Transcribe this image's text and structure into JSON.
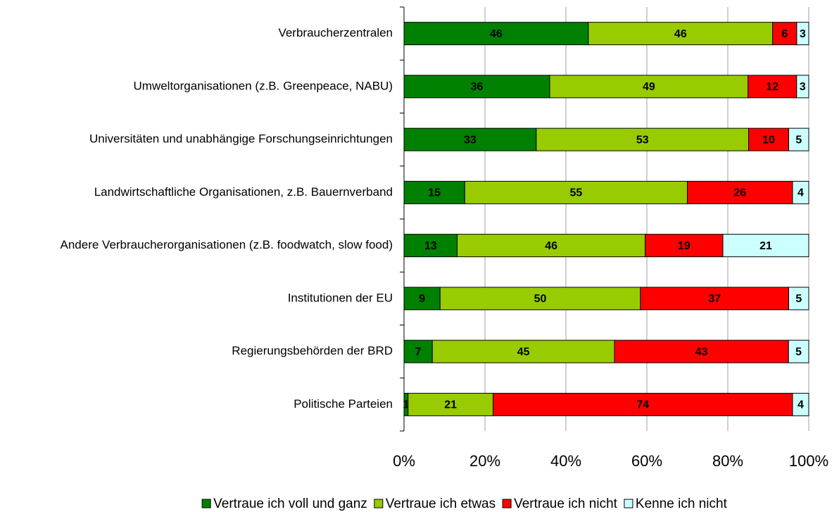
{
  "chart_data": {
    "type": "bar",
    "orientation": "horizontal",
    "stacked": "percent",
    "categories": [
      "Verbraucherzentralen",
      "Umweltorganisationen (z.B. Greenpeace, NABU)",
      "Universitäten und unabhängige Forschungseinrichtungen",
      "Landwirtschaftliche Organisationen, z.B. Bauernverband",
      "Andere Verbraucherorganisationen (z.B. foodwatch, slow food)",
      "Institutionen der EU",
      "Regierungsbehörden der BRD",
      "Politische Parteien"
    ],
    "series": [
      {
        "name": "Vertraue ich voll und ganz",
        "color": "#008000",
        "values": [
          46,
          36,
          33,
          15,
          13,
          9,
          7,
          1
        ]
      },
      {
        "name": "Vertraue ich etwas",
        "color": "#99cc00",
        "values": [
          46,
          49,
          53,
          55,
          46,
          50,
          45,
          21
        ]
      },
      {
        "name": "Vertraue ich nicht",
        "color": "#ff0000",
        "values": [
          6,
          12,
          10,
          26,
          19,
          37,
          43,
          74
        ]
      },
      {
        "name": "Kenne ich nicht",
        "color": "#ccffff",
        "values": [
          3,
          3,
          5,
          4,
          21,
          5,
          5,
          4
        ]
      }
    ],
    "xlim": [
      0,
      100
    ],
    "xticks": [
      {
        "value": 0,
        "label": "0%"
      },
      {
        "value": 20,
        "label": "20%"
      },
      {
        "value": 40,
        "label": "40%"
      },
      {
        "value": 60,
        "label": "60%"
      },
      {
        "value": 80,
        "label": "80%"
      },
      {
        "value": 100,
        "label": "100%"
      }
    ],
    "grid": true,
    "legend": "bottom"
  }
}
